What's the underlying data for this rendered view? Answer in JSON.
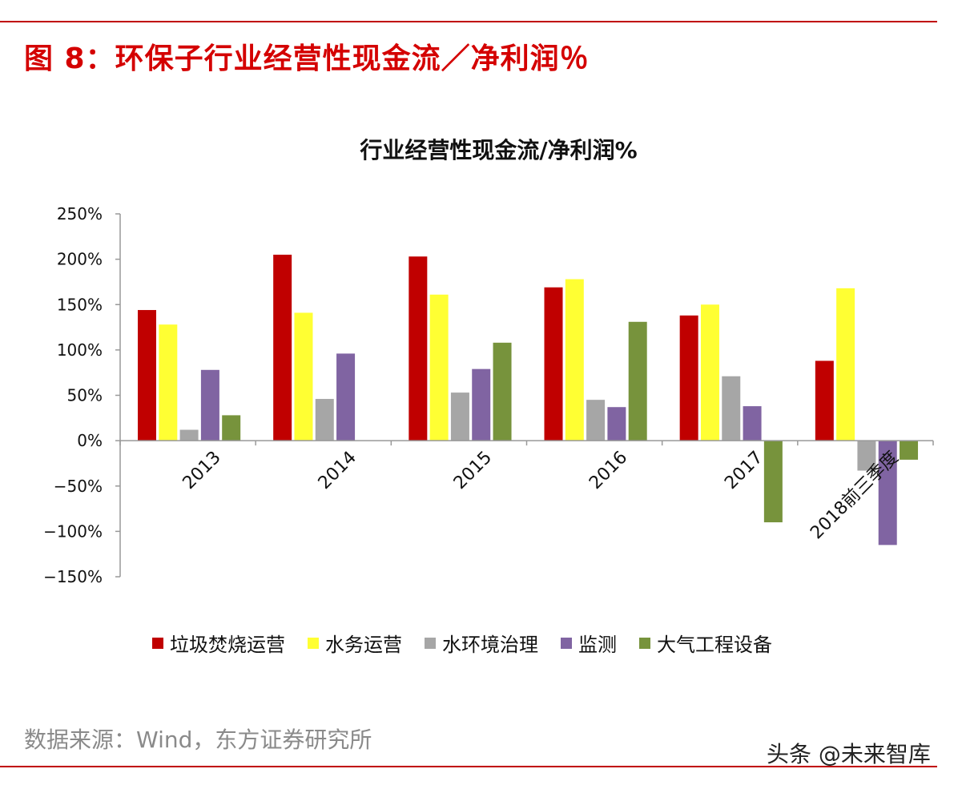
{
  "figure_title": "图 8：环保子行业经营性现金流／净利润％",
  "source": "数据来源：Wind，东方证券研究所",
  "watermark": "头条 @未来智库",
  "chart_data": {
    "type": "bar",
    "title": "行业经营性现金流/净利润%",
    "categories": [
      "2013",
      "2014",
      "2015",
      "2016",
      "2017",
      "2018前三季度"
    ],
    "ylim": [
      -150,
      250
    ],
    "yticks": [
      250,
      200,
      150,
      100,
      50,
      0,
      -50,
      -100,
      -150
    ],
    "ytick_labels": [
      "250%",
      "200%",
      "150%",
      "100%",
      "50%",
      "0%",
      "−50%",
      "−100%",
      "−150%"
    ],
    "legend_position": "bottom",
    "grid": false,
    "series": [
      {
        "name": "垃圾焚烧运营",
        "color": "#c00000",
        "values": [
          144,
          205,
          203,
          169,
          138,
          88
        ]
      },
      {
        "name": "水务运营",
        "color": "#ffff33",
        "values": [
          128,
          141,
          161,
          178,
          150,
          168
        ]
      },
      {
        "name": "水环境治理",
        "color": "#a6a6a6",
        "values": [
          12,
          46,
          53,
          45,
          71,
          -33
        ]
      },
      {
        "name": "监测",
        "color": "#8064a2",
        "values": [
          78,
          96,
          79,
          37,
          38,
          -115
        ]
      },
      {
        "name": "大气工程设备",
        "color": "#77933c",
        "values": [
          28,
          null,
          108,
          131,
          -90,
          -21
        ]
      }
    ]
  }
}
